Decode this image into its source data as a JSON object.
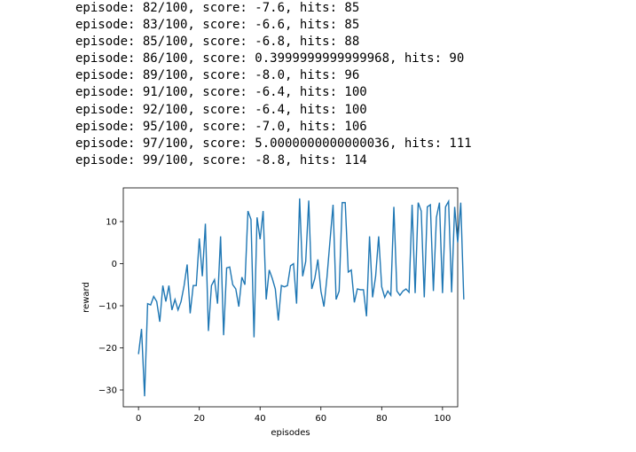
{
  "log_lines": [
    "episode: 82/100, score: -7.6, hits: 85",
    "episode: 83/100, score: -6.6, hits: 85",
    "episode: 85/100, score: -6.8, hits: 88",
    "episode: 86/100, score: 0.3999999999999968, hits: 90",
    "episode: 89/100, score: -8.0, hits: 96",
    "episode: 91/100, score: -6.4, hits: 100",
    "episode: 92/100, score: -6.4, hits: 100",
    "episode: 95/100, score: -7.0, hits: 106",
    "episode: 97/100, score: 5.0000000000000036, hits: 111",
    "episode: 99/100, score: -8.8, hits: 114"
  ],
  "chart_data": {
    "type": "line",
    "xlabel": "episodes",
    "ylabel": "reward",
    "xlim": [
      -5,
      105
    ],
    "ylim": [
      -34,
      18
    ],
    "xticks": [
      0,
      20,
      40,
      60,
      80,
      100
    ],
    "yticks": [
      -30,
      -20,
      -10,
      0,
      10
    ],
    "xtick_labels": [
      "0",
      "20",
      "40",
      "60",
      "80",
      "100"
    ],
    "ytick_labels": [
      "−30",
      "−20",
      "−10",
      "0",
      "10"
    ],
    "grid": false,
    "line_color": "#1f77b4",
    "series": [
      {
        "values": [
          -21.5,
          -15.5,
          -31.5,
          -9.5,
          -9.8,
          -7.8,
          -9.0,
          -13.8,
          -5.2,
          -9.0,
          -5.2,
          -11.0,
          -8.5,
          -11.0,
          -9.0,
          -5.2,
          -0.2,
          -11.8,
          -5.2,
          -5.2,
          6.0,
          -3.0,
          9.5,
          -16.0,
          -5.2,
          -3.8,
          -9.5,
          6.5,
          -17.0,
          -1.0,
          -0.8,
          -5.0,
          -6.0,
          -10.2,
          -3.2,
          -5.0,
          12.5,
          10.5,
          -17.5,
          11.0,
          5.8,
          12.5,
          -8.5,
          -1.5,
          -3.5,
          -6.0,
          -13.5,
          -5.2,
          -5.5,
          -5.2,
          -0.5,
          0.0,
          -9.5,
          15.5,
          -3.0,
          0.5,
          15.0,
          -6.0,
          -3.5,
          1.0,
          -6.5,
          -10.2,
          -3.2,
          5.5,
          14.0,
          -8.5,
          -6.5,
          14.5,
          14.5,
          -2.0,
          -1.5,
          -9.2,
          -6.0,
          -6.2,
          -6.2,
          -12.5,
          6.5,
          -8.0,
          -3.0,
          6.5,
          -5.5,
          -8.0,
          -6.5,
          -7.5,
          13.5,
          -6.5,
          -7.5,
          -6.5,
          -6.0,
          -6.8,
          14.0,
          -7.0,
          14.5,
          12.5,
          -8.0,
          13.5,
          14.0,
          -6.5,
          11.0,
          14.5,
          -7.0,
          13.5,
          14.8,
          -6.8,
          13.5,
          5.0,
          14.5,
          -8.5
        ]
      }
    ]
  }
}
